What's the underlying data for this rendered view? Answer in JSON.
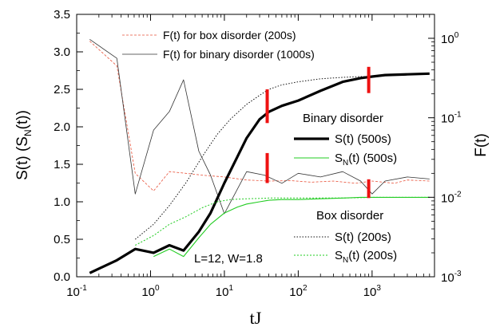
{
  "chart_data": {
    "type": "line",
    "x_label": "tJ",
    "y_left_label": "S(t) (S",
    "y_left_label_sub": "N",
    "y_left_label_tail": "(t))",
    "y_right_label": "F(t)",
    "x_scale": "log",
    "x_range": [
      0.1,
      7000
    ],
    "x_ticks": [
      {
        "value": 0.1,
        "base": "10",
        "exp": "-1"
      },
      {
        "value": 1,
        "base": "10",
        "exp": "0"
      },
      {
        "value": 10,
        "base": "10",
        "exp": "1"
      },
      {
        "value": 100,
        "base": "10",
        "exp": "2"
      },
      {
        "value": 1000,
        "base": "10",
        "exp": "3"
      }
    ],
    "y_left_range": [
      0,
      3.5
    ],
    "y_left_ticks": [
      "0.0",
      "0.5",
      "1.0",
      "1.5",
      "2.0",
      "2.5",
      "3.0",
      "3.5"
    ],
    "y_right_scale": "log",
    "y_right_range": [
      0.001,
      2
    ],
    "y_right_ticks": [
      {
        "value": 0.001,
        "base": "10",
        "exp": "-3"
      },
      {
        "value": 0.01,
        "base": "10",
        "exp": "-2"
      },
      {
        "value": 0.1,
        "base": "10",
        "exp": "-1"
      },
      {
        "value": 1,
        "base": "10",
        "exp": "0"
      }
    ],
    "annotation": "L=12, W=1.8",
    "legend_top": [
      {
        "label": "F(t) for box disorder (200s)",
        "series": "f_box"
      },
      {
        "label": "F(t) for binary disorder (1000s)",
        "series": "f_binary"
      }
    ],
    "legend_binary": {
      "title": "Binary disorder",
      "entries": [
        {
          "label": "S(t) (500s)",
          "series": "s_binary"
        },
        {
          "label_main": "S",
          "label_sub": "N",
          "label_tail": "(t) (500s)",
          "series": "sn_binary"
        }
      ]
    },
    "legend_box": {
      "title": "Box disorder",
      "entries": [
        {
          "label": "S(t) (200s)",
          "series": "s_box"
        },
        {
          "label_main": "S",
          "label_sub": "N",
          "label_tail": "(t) (200s)",
          "series": "sn_box"
        }
      ]
    },
    "series": [
      {
        "id": "f_box",
        "axis": "right",
        "color": "#e8523a",
        "dash": "3,2",
        "width": 0.8,
        "x": [
          0.15,
          0.35,
          0.62,
          1.1,
          1.8,
          3,
          5,
          10,
          20,
          40,
          80,
          150,
          300,
          600,
          1000,
          2000,
          3000,
          6000
        ],
        "y": [
          0.92,
          0.45,
          0.02,
          0.012,
          0.021,
          0.02,
          0.019,
          0.018,
          0.0165,
          0.016,
          0.0162,
          0.0155,
          0.016,
          0.015,
          0.016,
          0.015,
          0.0165,
          0.016
        ]
      },
      {
        "id": "f_binary",
        "axis": "right",
        "color": "#333333",
        "dash": "",
        "width": 0.8,
        "x": [
          0.15,
          0.35,
          0.62,
          1.1,
          1.8,
          2.8,
          4.5,
          6.5,
          10,
          20,
          35,
          60,
          100,
          200,
          400,
          700,
          1000,
          1500,
          3000,
          6000
        ],
        "y": [
          0.97,
          0.56,
          0.011,
          0.07,
          0.12,
          0.3,
          0.038,
          0.019,
          0.0062,
          0.021,
          0.019,
          0.015,
          0.02,
          0.018,
          0.021,
          0.016,
          0.011,
          0.016,
          0.018,
          0.017
        ]
      },
      {
        "id": "s_binary",
        "axis": "left",
        "color": "#000000",
        "dash": "",
        "width": 3.2,
        "x": [
          0.15,
          0.35,
          0.62,
          1.1,
          1.8,
          2.8,
          4.5,
          6.5,
          10,
          15,
          20,
          30,
          40,
          60,
          100,
          200,
          400,
          700,
          1000,
          1500,
          3000,
          6000
        ],
        "y": [
          0.05,
          0.22,
          0.37,
          0.32,
          0.42,
          0.35,
          0.6,
          0.85,
          1.25,
          1.6,
          1.85,
          2.1,
          2.2,
          2.28,
          2.35,
          2.48,
          2.6,
          2.65,
          2.67,
          2.69,
          2.7,
          2.71
        ]
      },
      {
        "id": "sn_binary",
        "axis": "left",
        "color": "#22cc22",
        "dash": "",
        "width": 1.1,
        "x": [
          1.1,
          1.8,
          2.8,
          4.5,
          6.5,
          10,
          15,
          20,
          30,
          40,
          60,
          100,
          200,
          400,
          700,
          1000,
          1500,
          3000,
          6000
        ],
        "y": [
          0.27,
          0.37,
          0.27,
          0.52,
          0.7,
          0.85,
          0.93,
          0.97,
          1.0,
          1.02,
          1.03,
          1.03,
          1.04,
          1.05,
          1.06,
          1.06,
          1.06,
          1.06,
          1.06
        ]
      },
      {
        "id": "s_box",
        "axis": "left",
        "color": "#111111",
        "dash": "1.5,2",
        "width": 1.0,
        "x": [
          0.62,
          1.1,
          1.8,
          3,
          5,
          8,
          12,
          20,
          30,
          40,
          60,
          100,
          200,
          400,
          700,
          1000
        ],
        "y": [
          0.5,
          0.7,
          0.95,
          1.25,
          1.6,
          1.9,
          2.1,
          2.3,
          2.42,
          2.5,
          2.56,
          2.6,
          2.64,
          2.66,
          2.67,
          2.67
        ]
      },
      {
        "id": "sn_box",
        "axis": "left",
        "color": "#22cc22",
        "dash": "2,2",
        "width": 1.0,
        "x": [
          0.62,
          1.1,
          1.8,
          3,
          5,
          8,
          12,
          20,
          30,
          40,
          60,
          100,
          200,
          400,
          700,
          1000,
          1500,
          3000,
          6000
        ],
        "y": [
          0.42,
          0.55,
          0.7,
          0.8,
          0.92,
          1.0,
          1.03,
          1.04,
          1.045,
          1.05,
          1.05,
          1.05,
          1.05,
          1.05,
          1.055,
          1.06,
          1.06,
          1.06,
          1.06
        ]
      }
    ],
    "markers": [
      {
        "x": 38,
        "y_low": 1.25,
        "y_high": 1.65,
        "axis": "left",
        "note": "binary short"
      },
      {
        "x": 38,
        "y_low": 2.05,
        "y_high": 2.5,
        "axis": "left",
        "note": "binary tall"
      },
      {
        "x": 900,
        "y_low": 1.05,
        "y_high": 1.3,
        "axis": "left",
        "note": "box low"
      },
      {
        "x": 900,
        "y_low": 2.45,
        "y_high": 2.8,
        "axis": "left",
        "note": "box high"
      }
    ],
    "marker_color": "#ee1111"
  }
}
